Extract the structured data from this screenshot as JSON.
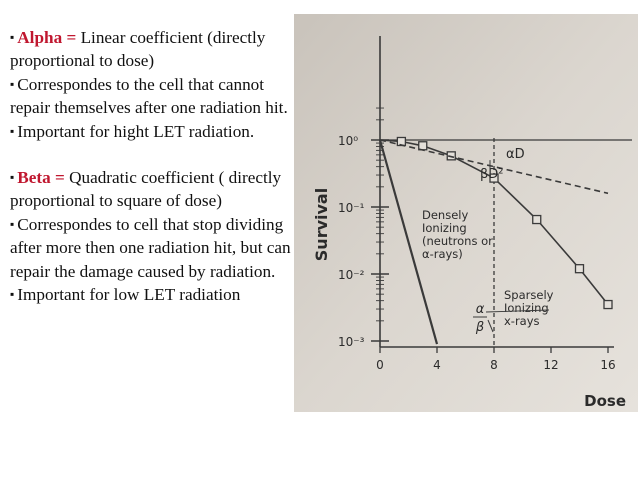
{
  "text": {
    "alpha": {
      "bullet": "▪",
      "term": "Alpha =",
      "definition": " Linear coefficient (directly proportional to dose)",
      "point1": "Correspondes to the cell that cannot repair themselves after one radiation hit.",
      "point2": "Important for hight LET radiation."
    },
    "beta": {
      "bullet": "▪",
      "term": "Beta =",
      "definition": " Quadratic coefficient ( directly proportional to square of dose)",
      "point1": "Correspondes to cell that stop dividing after more then one radiation hit, but can repair the damage caused by radiation.",
      "point2": "Important for low LET radiation"
    }
  },
  "chart_data": {
    "type": "line",
    "title": "",
    "xlabel": "Dose",
    "ylabel": "Survival",
    "xlim": [
      0,
      16
    ],
    "ylim_log10": [
      -3,
      0
    ],
    "x_ticks": [
      "0",
      "4",
      "8",
      "12",
      "16"
    ],
    "y_ticks": [
      "10⁰",
      "10⁻¹",
      "10⁻²",
      "10⁻³"
    ],
    "annotations": {
      "alpha_d": "αD",
      "beta_d2": "βD²",
      "densely": [
        "Densely",
        "Ionizing",
        "(neutrons or",
        "α-rays)"
      ],
      "sparsely": [
        "Sparsely",
        "Ionizing",
        "x-rays"
      ],
      "ratio_num": "α",
      "ratio_den": "β"
    },
    "series": [
      {
        "key": "densely",
        "style": "solid",
        "x": [
          0,
          4
        ],
        "y": [
          1,
          0.0009
        ]
      },
      {
        "key": "sparsely",
        "style": "solid-markers",
        "x": [
          0,
          1.5,
          3,
          5,
          8,
          11,
          14,
          16
        ],
        "y": [
          1,
          0.95,
          0.82,
          0.58,
          0.27,
          0.065,
          0.012,
          0.0035
        ]
      },
      {
        "key": "alpha_component",
        "style": "dashed",
        "x": [
          0,
          16
        ],
        "y": [
          1,
          0.16
        ]
      }
    ],
    "reference_line_x": 8
  }
}
